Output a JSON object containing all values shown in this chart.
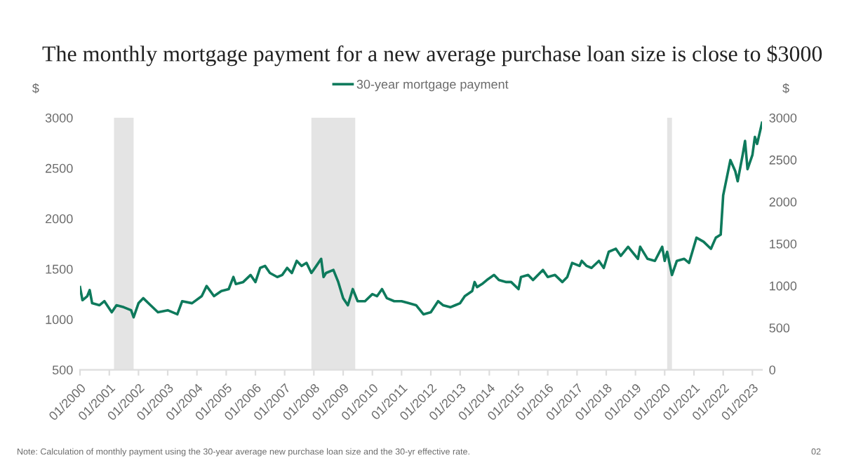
{
  "chart_data": {
    "type": "line",
    "title": "The monthly mortgage payment for a new average purchase loan size is close to $3000",
    "ylabel": "$",
    "y2label": "$",
    "x": [
      "2000-01",
      "2000-02",
      "2000-04",
      "2000-05",
      "2000-06",
      "2000-09",
      "2000-11",
      "2001-02",
      "2001-04",
      "2001-07",
      "2001-10",
      "2001-11",
      "2002-01",
      "2002-03",
      "2002-06",
      "2002-09",
      "2003-01",
      "2003-05",
      "2003-07",
      "2003-11",
      "2004-03",
      "2004-05",
      "2004-08",
      "2004-11",
      "2005-02",
      "2005-04",
      "2005-05",
      "2005-08",
      "2005-11",
      "2006-01",
      "2006-03",
      "2006-05",
      "2006-07",
      "2006-10",
      "2006-12",
      "2007-02",
      "2007-04",
      "2007-06",
      "2007-08",
      "2007-10",
      "2007-12",
      "2008-02",
      "2008-04",
      "2008-05",
      "2008-06",
      "2008-09",
      "2008-11",
      "2009-01",
      "2009-03",
      "2009-05",
      "2009-07",
      "2009-10",
      "2010-01",
      "2010-03",
      "2010-05",
      "2010-07",
      "2010-10",
      "2011-01",
      "2011-04",
      "2011-07",
      "2011-10",
      "2012-01",
      "2012-04",
      "2012-06",
      "2012-09",
      "2012-11",
      "2013-01",
      "2013-03",
      "2013-06",
      "2013-07",
      "2013-08",
      "2013-10",
      "2013-12",
      "2014-03",
      "2014-05",
      "2014-08",
      "2014-10",
      "2015-01",
      "2015-02",
      "2015-05",
      "2015-07",
      "2015-11",
      "2016-01",
      "2016-04",
      "2016-07",
      "2016-09",
      "2016-11",
      "2017-02",
      "2017-03",
      "2017-05",
      "2017-07",
      "2017-10",
      "2017-12",
      "2018-02",
      "2018-05",
      "2018-07",
      "2018-10",
      "2019-02",
      "2019-03",
      "2019-06",
      "2019-09",
      "2019-12",
      "2020-01",
      "2020-02",
      "2020-04",
      "2020-06",
      "2020-09",
      "2020-11",
      "2021-02",
      "2021-05",
      "2021-08",
      "2021-10",
      "2021-12",
      "2022-01",
      "2022-04",
      "2022-06",
      "2022-07",
      "2022-09",
      "2022-10",
      "2022-11",
      "2023-01",
      "2023-02",
      "2023-03",
      "2023-05"
    ],
    "series": [
      {
        "name": "30-year mortgage payment",
        "color": "#0e7a5c",
        "values": [
          1320,
          1190,
          1230,
          1290,
          1160,
          1140,
          1180,
          1070,
          1140,
          1120,
          1090,
          1020,
          1160,
          1210,
          1140,
          1070,
          1090,
          1050,
          1180,
          1160,
          1230,
          1330,
          1230,
          1280,
          1300,
          1420,
          1350,
          1370,
          1440,
          1370,
          1510,
          1530,
          1460,
          1420,
          1440,
          1510,
          1460,
          1580,
          1530,
          1560,
          1460,
          1530,
          1600,
          1420,
          1460,
          1490,
          1370,
          1210,
          1140,
          1300,
          1180,
          1180,
          1250,
          1230,
          1300,
          1210,
          1180,
          1180,
          1160,
          1140,
          1050,
          1070,
          1180,
          1140,
          1120,
          1140,
          1160,
          1230,
          1280,
          1370,
          1320,
          1350,
          1390,
          1440,
          1390,
          1370,
          1370,
          1300,
          1420,
          1440,
          1390,
          1490,
          1420,
          1440,
          1370,
          1420,
          1560,
          1530,
          1580,
          1530,
          1510,
          1580,
          1510,
          1670,
          1700,
          1630,
          1720,
          1600,
          1720,
          1600,
          1580,
          1720,
          1580,
          1670,
          1440,
          1580,
          1600,
          1560,
          1810,
          1770,
          1700,
          1810,
          1840,
          2230,
          2580,
          2470,
          2370,
          2630,
          2770,
          2490,
          2630,
          2810,
          2740,
          2950
        ]
      }
    ],
    "xlim": [
      "2000-01",
      "2023-05"
    ],
    "xticks": [
      {
        "value": "2000-01",
        "label": "01/2000"
      },
      {
        "value": "2001-01",
        "label": "01/2001"
      },
      {
        "value": "2002-01",
        "label": "01/2002"
      },
      {
        "value": "2003-01",
        "label": "01/2003"
      },
      {
        "value": "2004-01",
        "label": "01/2004"
      },
      {
        "value": "2005-01",
        "label": "01/2005"
      },
      {
        "value": "2006-01",
        "label": "01/2006"
      },
      {
        "value": "2007-01",
        "label": "01/2007"
      },
      {
        "value": "2008-01",
        "label": "01/2008"
      },
      {
        "value": "2009-01",
        "label": "01/2009"
      },
      {
        "value": "2010-01",
        "label": "01/2010"
      },
      {
        "value": "2011-01",
        "label": "01/2011"
      },
      {
        "value": "2012-01",
        "label": "01/2012"
      },
      {
        "value": "2013-01",
        "label": "01/2013"
      },
      {
        "value": "2014-01",
        "label": "01/2014"
      },
      {
        "value": "2015-01",
        "label": "01/2015"
      },
      {
        "value": "2016-01",
        "label": "01/2016"
      },
      {
        "value": "2017-01",
        "label": "01/2017"
      },
      {
        "value": "2018-01",
        "label": "01/2018"
      },
      {
        "value": "2019-01",
        "label": "01/2019"
      },
      {
        "value": "2020-01",
        "label": "01/2020"
      },
      {
        "value": "2021-01",
        "label": "01/2021"
      },
      {
        "value": "2022-01",
        "label": "01/2022"
      },
      {
        "value": "2023-01",
        "label": "01/2023"
      }
    ],
    "ylim": [
      500,
      3000
    ],
    "yticks": [
      500,
      1000,
      1500,
      2000,
      2500,
      3000
    ],
    "y2lim": [
      0,
      3000
    ],
    "y2ticks": [
      0,
      500,
      1000,
      1500,
      2000,
      2500,
      3000
    ],
    "bands": [
      {
        "axis": "x",
        "from": "2001-03",
        "to": "2001-11",
        "color": "#e4e4e4"
      },
      {
        "axis": "x",
        "from": "2007-12",
        "to": "2009-06",
        "color": "#e4e4e4"
      },
      {
        "axis": "x",
        "from": "2020-02",
        "to": "2020-04",
        "color": "#e4e4e4"
      }
    ],
    "legend": "top",
    "grid": false,
    "annotations": [
      "Note: Calculation of monthly payment using the 30-year average new purchase loan size and the 30-yr effective rate.",
      "02"
    ]
  }
}
